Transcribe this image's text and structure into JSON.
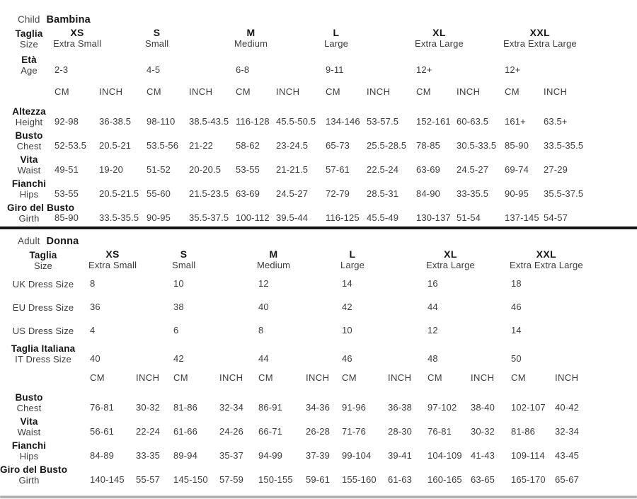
{
  "page": {
    "bg_color": "#ffffff",
    "text_color": "#3c3c3c",
    "bold_color": "#161616",
    "divider_color": "#161616"
  },
  "units": {
    "cm": "CM",
    "inch": "INCH"
  },
  "child": {
    "type_label": "Child",
    "name_label": "Bambina",
    "size_header": {
      "label_it": "Taglia",
      "label_en": "Size"
    },
    "sizes": [
      {
        "code": "XS",
        "name": "Extra Small"
      },
      {
        "code": "S",
        "name": "Small"
      },
      {
        "code": "M",
        "name": "Medium"
      },
      {
        "code": "L",
        "name": "Large"
      },
      {
        "code": "XL",
        "name": "Extra Large"
      },
      {
        "code": "XXL",
        "name": "Extra Extra Large"
      }
    ],
    "age_row": {
      "label_it": "Età",
      "label_en": "Age",
      "values": [
        "2-3",
        "4-5",
        "6-8",
        "9-11",
        "12+",
        "12+"
      ]
    },
    "measure_rows": [
      {
        "label_it": "Altezza",
        "label_en": "Height",
        "values": [
          "92-98",
          "36-38.5",
          "98-110",
          "38.5-43.5",
          "116-128",
          "45.5-50.5",
          "134-146",
          "53-57.5",
          "152-161",
          "60-63.5",
          "161+",
          "63.5+"
        ]
      },
      {
        "label_it": "Busto",
        "label_en": "Chest",
        "values": [
          "52-53.5",
          "20.5-21",
          "53.5-56",
          "21-22",
          "58-62",
          "23-24.5",
          "65-73",
          "25.5-28.5",
          "78-85",
          "30.5-33.5",
          "85-90",
          "33.5-35.5"
        ]
      },
      {
        "label_it": "Vita",
        "label_en": "Waist",
        "values": [
          "49-51",
          "19-20",
          "51-52",
          "20-20.5",
          "53-55",
          "21-21.5",
          "57-61",
          "22.5-24",
          "63-69",
          "24.5-27",
          "69-74",
          "27-29"
        ]
      },
      {
        "label_it": "Fianchi",
        "label_en": "Hips",
        "values": [
          "53-55",
          "20.5-21.5",
          "55-60",
          "21.5-23.5",
          "63-69",
          "24.5-27",
          "72-79",
          "28.5-31",
          "84-90",
          "33-35.5",
          "90-95",
          "35.5-37.5"
        ]
      },
      {
        "label_it": "Giro del Busto",
        "label_en": "Girth",
        "values": [
          "85-90",
          "33.5-35.5",
          "90-95",
          "35.5-37.5",
          "100-112",
          "39.5-44",
          "116-125",
          "45.5-49",
          "130-137",
          "51-54",
          "137-145",
          "54-57"
        ]
      }
    ]
  },
  "adult": {
    "type_label": "Adult",
    "name_label": "Donna",
    "size_header": {
      "label_it": "Taglia",
      "label_en": "Size"
    },
    "sizes": [
      {
        "code": "XS",
        "name": "Extra Small"
      },
      {
        "code": "S",
        "name": "Small"
      },
      {
        "code": "M",
        "name": "Medium"
      },
      {
        "code": "L",
        "name": "Large"
      },
      {
        "code": "XL",
        "name": "Extra Large"
      },
      {
        "code": "XXL",
        "name": "Extra Extra Large"
      }
    ],
    "dress_rows": [
      {
        "label": "UK Dress Size",
        "values": [
          "8",
          "10",
          "12",
          "14",
          "16",
          "18"
        ]
      },
      {
        "label": "EU Dress Size",
        "values": [
          "36",
          "38",
          "40",
          "42",
          "44",
          "46"
        ]
      },
      {
        "label": "US Dress Size",
        "values": [
          "4",
          "6",
          "8",
          "10",
          "12",
          "14"
        ]
      },
      {
        "label_bold": "Taglia Italiana",
        "label": "IT Dress Size",
        "values": [
          "40",
          "42",
          "44",
          "46",
          "48",
          "50"
        ]
      }
    ],
    "measure_rows": [
      {
        "label_it": "Busto",
        "label_en": "Chest",
        "values": [
          "76-81",
          "30-32",
          "81-86",
          "32-34",
          "86-91",
          "34-36",
          "91-96",
          "36-38",
          "97-102",
          "38-40",
          "102-107",
          "40-42"
        ]
      },
      {
        "label_it": "Vita",
        "label_en": "Waist",
        "values": [
          "56-61",
          "22-24",
          "61-66",
          "24-26",
          "66-71",
          "26-28",
          "71-76",
          "28-30",
          "76-81",
          "30-32",
          "81-86",
          "32-34"
        ]
      },
      {
        "label_it": "Fianchi",
        "label_en": "Hips",
        "values": [
          "84-89",
          "33-35",
          "89-94",
          "35-37",
          "94-99",
          "37-39",
          "99-104",
          "39-41",
          "104-109",
          "41-43",
          "109-114",
          "43-45"
        ]
      },
      {
        "label_it": "Giro del Busto",
        "label_en": "Girth",
        "values": [
          "140-145",
          "55-57",
          "145-150",
          "57-59",
          "150-155",
          "59-61",
          "155-160",
          "61-63",
          "160-165",
          "63-65",
          "165-170",
          "65-67"
        ]
      }
    ]
  }
}
